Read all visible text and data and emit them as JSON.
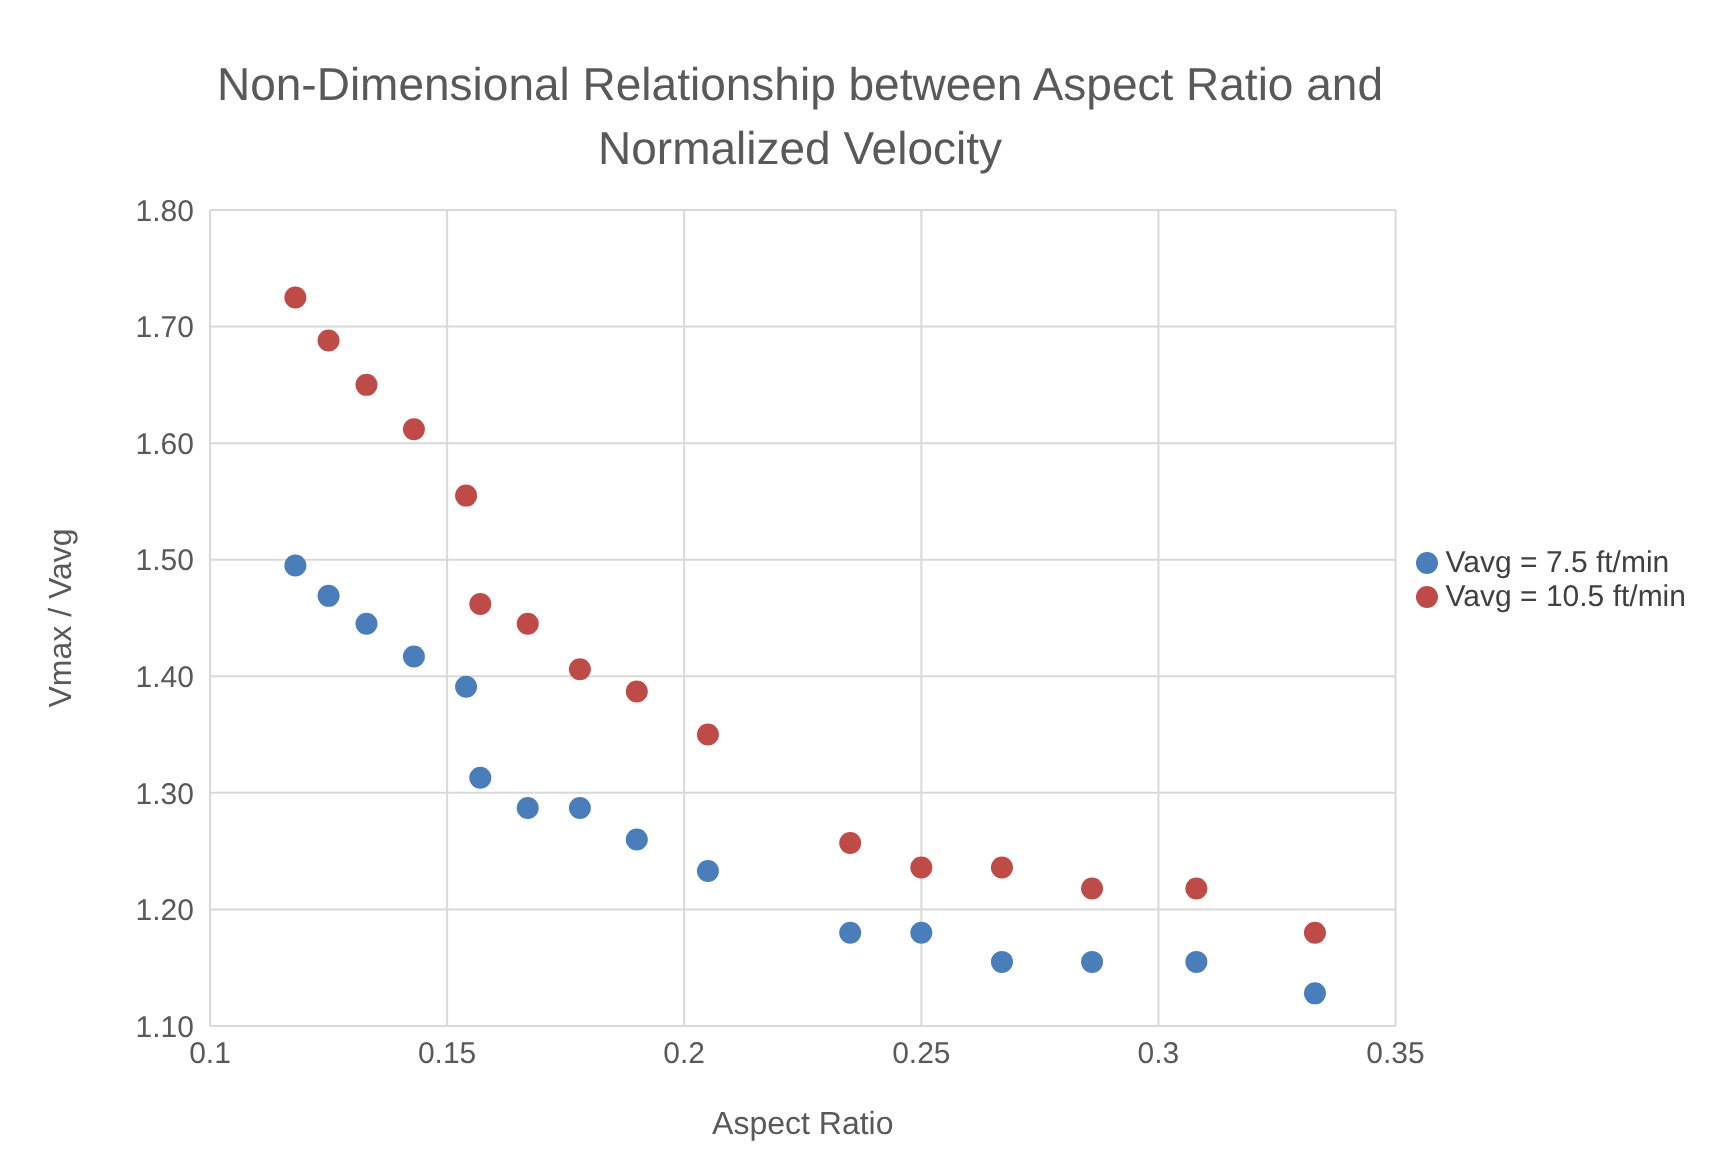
{
  "chart_data": {
    "type": "scatter",
    "title": "Non-Dimensional Relationship between Aspect Ratio and Normalized Velocity",
    "xlabel": "Aspect Ratio",
    "ylabel": "Vmax / Vavg",
    "x": [
      0.118,
      0.125,
      0.133,
      0.143,
      0.154,
      0.157,
      0.167,
      0.178,
      0.19,
      0.205,
      0.235,
      0.25,
      0.267,
      0.286,
      0.308,
      0.333
    ],
    "series": [
      {
        "name": "Vavg = 7.5 ft/min",
        "color": "#4a7ebb",
        "values": [
          1.495,
          1.469,
          1.445,
          1.417,
          1.391,
          1.313,
          1.287,
          1.287,
          1.26,
          1.233,
          1.18,
          1.18,
          1.155,
          1.155,
          1.155,
          1.128
        ]
      },
      {
        "name": "Vavg = 10.5 ft/min",
        "color": "#be4b48",
        "values": [
          1.725,
          1.688,
          1.65,
          1.612,
          1.555,
          1.462,
          1.445,
          1.406,
          1.387,
          1.35,
          1.257,
          1.236,
          1.236,
          1.218,
          1.218,
          1.18
        ]
      }
    ],
    "xlim": [
      0.1,
      0.35
    ],
    "xticks": [
      0.1,
      0.15,
      0.2,
      0.25,
      0.3,
      0.35
    ],
    "ylim": [
      1.1,
      1.8
    ],
    "yticks": [
      {
        "value": 1.1,
        "label": "1.10"
      },
      {
        "value": 1.2,
        "label": "1.20"
      },
      {
        "value": 1.3,
        "label": "1.30"
      },
      {
        "value": 1.4,
        "label": "1.40"
      },
      {
        "value": 1.5,
        "label": "1.50"
      },
      {
        "value": 1.6,
        "label": "1.60"
      },
      {
        "value": 1.7,
        "label": "1.70"
      },
      {
        "value": 1.8,
        "label": "1.80"
      }
    ],
    "grid": true,
    "legend": "right",
    "marker": "circle"
  }
}
